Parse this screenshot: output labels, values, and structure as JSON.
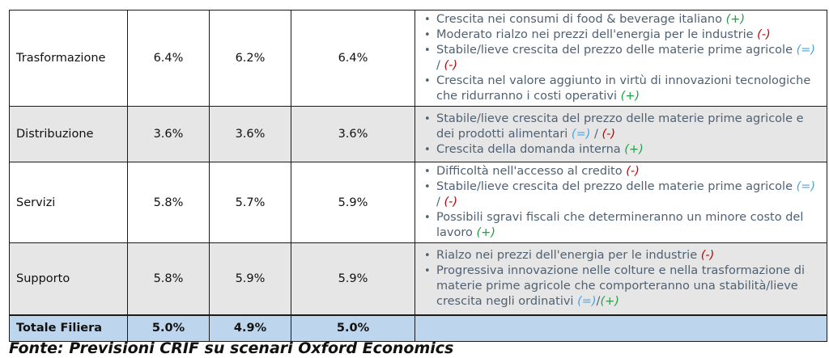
{
  "rows": [
    {
      "label": "Trasformazione",
      "v1": "6.4%",
      "v2": "6.2%",
      "v3": "6.4%",
      "notes": [
        {
          "parts": [
            {
              "t": "Crescita nei consumi di food & beverage italiano ",
              "c": ""
            },
            {
              "t": "(+)",
              "c": "plus"
            }
          ]
        },
        {
          "parts": [
            {
              "t": "Moderato rialzo nei prezzi dell'energia per le industrie ",
              "c": ""
            },
            {
              "t": "(-)",
              "c": "minus"
            }
          ]
        },
        {
          "parts": [
            {
              "t": "Stabile/lieve crescita del prezzo delle materie prime agricole ",
              "c": ""
            },
            {
              "t": "(=)",
              "c": "eq"
            },
            {
              "t": " / ",
              "c": "sep"
            },
            {
              "t": "(-)",
              "c": "minus"
            }
          ]
        },
        {
          "parts": [
            {
              "t": "Crescita nel valore aggiunto in virtù di innovazioni tecnologiche che ridurranno i costi operativi ",
              "c": ""
            },
            {
              "t": "(+)",
              "c": "plus"
            }
          ]
        }
      ]
    },
    {
      "label": "Distribuzione",
      "v1": "3.6%",
      "v2": "3.6%",
      "v3": "3.6%",
      "notes": [
        {
          "parts": [
            {
              "t": "Stabile/lieve crescita del prezzo delle materie prime agricole e dei prodotti alimentari ",
              "c": ""
            },
            {
              "t": "(=)",
              "c": "eq"
            },
            {
              "t": " / ",
              "c": "sep"
            },
            {
              "t": "(-)",
              "c": "minus"
            }
          ]
        },
        {
          "parts": [
            {
              "t": "Crescita della domanda interna ",
              "c": ""
            },
            {
              "t": "(+)",
              "c": "plus"
            }
          ]
        }
      ]
    },
    {
      "label": "Servizi",
      "v1": "5.8%",
      "v2": "5.7%",
      "v3": "5.9%",
      "notes": [
        {
          "parts": [
            {
              "t": "Difficoltà nell'accesso al credito ",
              "c": ""
            },
            {
              "t": "(-)",
              "c": "minus"
            }
          ]
        },
        {
          "parts": [
            {
              "t": "Stabile/lieve crescita del prezzo delle materie prime agricole ",
              "c": ""
            },
            {
              "t": "(=)",
              "c": "eq"
            },
            {
              "t": " / ",
              "c": "sep"
            },
            {
              "t": "(-)",
              "c": "minus"
            }
          ]
        },
        {
          "parts": [
            {
              "t": "Possibili sgravi fiscali che determineranno un minore costo del lavoro ",
              "c": ""
            },
            {
              "t": "(+)",
              "c": "plus"
            }
          ]
        }
      ]
    },
    {
      "label": "Supporto",
      "v1": "5.8%",
      "v2": "5.9%",
      "v3": "5.9%",
      "notes": [
        {
          "parts": [
            {
              "t": "Rialzo nei prezzi dell'energia per le industrie ",
              "c": ""
            },
            {
              "t": "(-)",
              "c": "minus"
            }
          ]
        },
        {
          "parts": [
            {
              "t": "Progressiva innovazione nelle colture e nella trasformazione di materie prime agricole che comporteranno una stabilità/lieve crescita negli ordinativi ",
              "c": ""
            },
            {
              "t": "(=)",
              "c": "eq"
            },
            {
              "t": "/",
              "c": "sep"
            },
            {
              "t": "(+)",
              "c": "plus"
            }
          ]
        }
      ]
    }
  ],
  "total": {
    "label": "Totale Filiera",
    "v1": "5.0%",
    "v2": "4.9%",
    "v3": "5.0%"
  },
  "source": "Fonte: Previsioni CRIF su scenari Oxford Economics",
  "colors": {
    "grey_row": "#e6e6e6",
    "total_row": "#bdd6ee",
    "plus": "#21a046",
    "minus": "#c00000",
    "equal": "#4aa3df",
    "note_text": "#4f6173"
  }
}
